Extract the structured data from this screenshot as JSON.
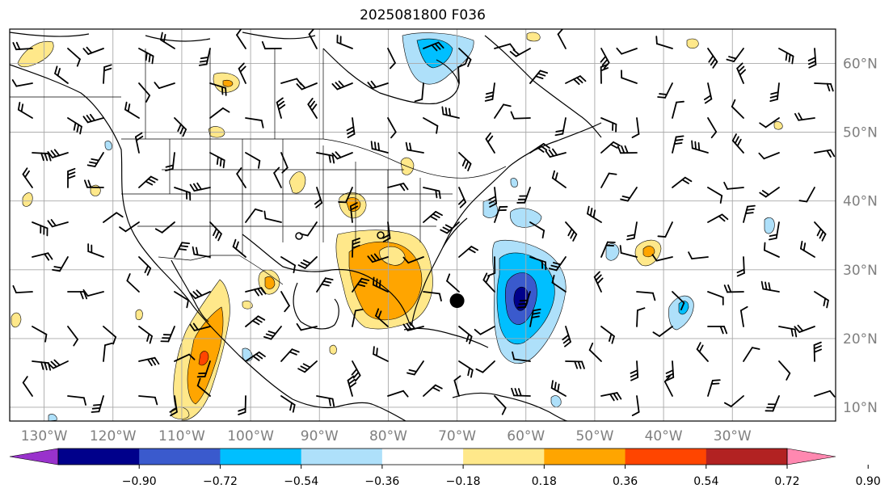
{
  "title": "2025081800 F036",
  "map": {
    "lon_labels": [
      {
        "label": "130°W",
        "lon": -130
      },
      {
        "label": "120°W",
        "lon": -120
      },
      {
        "label": "110°W",
        "lon": -110
      },
      {
        "label": "100°W",
        "lon": -100
      },
      {
        "label": "90°W",
        "lon": -90
      },
      {
        "label": "80°W",
        "lon": -80
      },
      {
        "label": "70°W",
        "lon": -70
      },
      {
        "label": "60°W",
        "lon": -60
      },
      {
        "label": "50°W",
        "lon": -50
      },
      {
        "label": "40°W",
        "lon": -40
      },
      {
        "label": "30°W",
        "lon": -30
      }
    ],
    "lat_labels": [
      {
        "label": "60°N",
        "lat": 60
      },
      {
        "label": "50°N",
        "lat": 50
      },
      {
        "label": "40°N",
        "lat": 40
      },
      {
        "label": "30°N",
        "lat": 30
      },
      {
        "label": "20°N",
        "lat": 20
      },
      {
        "label": "10°N",
        "lat": 10
      }
    ],
    "lon_range": [
      -135,
      -15
    ],
    "lat_range": [
      8,
      65
    ],
    "gridlines": true,
    "storm_marker": {
      "lon": -70,
      "lat": 25.5
    }
  },
  "colorbar": {
    "labels": [
      "−0.90",
      "−0.72",
      "−0.54",
      "−0.36",
      "−0.18",
      "0.18",
      "0.36",
      "0.54",
      "0.72",
      "0.90"
    ],
    "colors": [
      "#9932cc",
      "#00008b",
      "#3a5acd",
      "#00bfff",
      "#aee0fa",
      "#ffffff",
      "#ffe88a",
      "#ffa500",
      "#ff4500",
      "#b22222",
      "#ff88b0"
    ],
    "extend": "both"
  }
}
